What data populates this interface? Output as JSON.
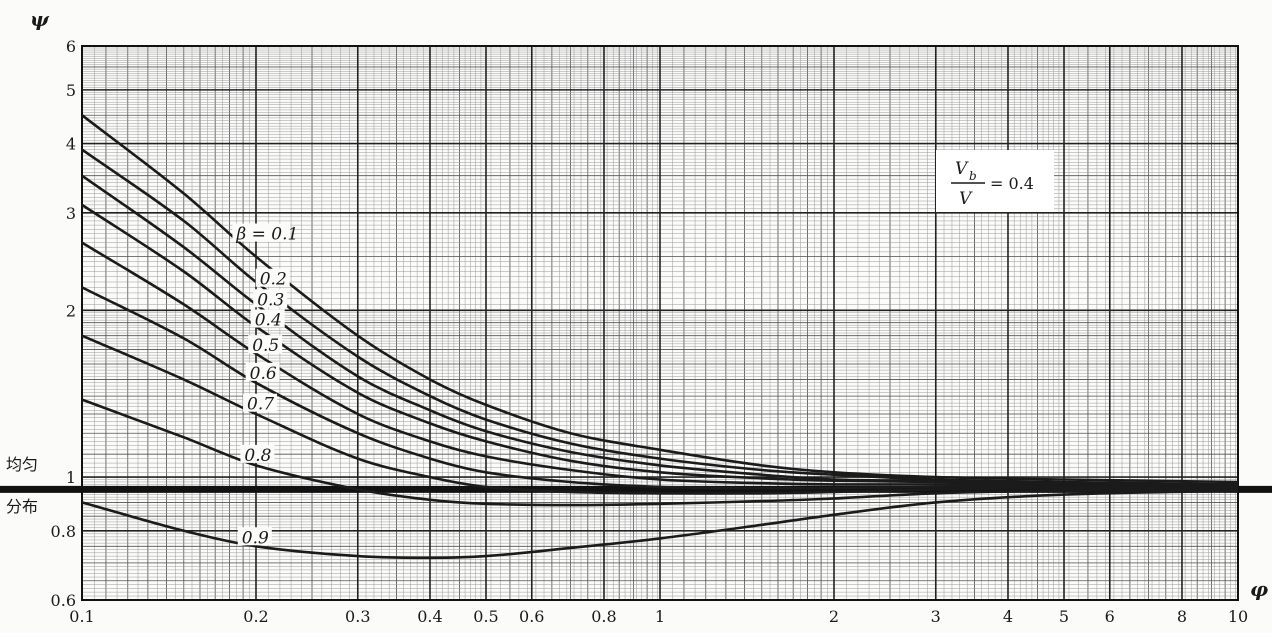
{
  "chart_data": {
    "type": "line",
    "ylabel": "ψ",
    "xlabel": "φ",
    "x_scale": "log",
    "y_scale": "log",
    "xlim": [
      0.1,
      10
    ],
    "ylim": [
      0.6,
      6
    ],
    "grid": true,
    "x_ticks": [
      0.1,
      0.2,
      0.3,
      0.4,
      0.5,
      0.6,
      0.8,
      1,
      2,
      3,
      4,
      5,
      6,
      8,
      10
    ],
    "x_tick_labels": [
      "0.1",
      "0.2",
      "0.3",
      "0.4",
      "0.5",
      "0.6",
      "0.8",
      "1",
      "2",
      "3",
      "4",
      "5",
      "6",
      "8",
      "10"
    ],
    "y_ticks": [
      0.6,
      0.8,
      1,
      2,
      3,
      4,
      5,
      6
    ],
    "y_tick_labels": [
      "0.6",
      "0.8",
      "1",
      "2",
      "3",
      "4",
      "5",
      "6"
    ],
    "annotation": {
      "lhs_numerator": "V",
      "lhs_numerator_sub": "b",
      "lhs_denominator": "V",
      "rhs": "= 0.4"
    },
    "reference_line": {
      "y": 0.95,
      "label_upper": "均匀",
      "label_lower": "分布"
    },
    "x": [
      0.1,
      0.15,
      0.2,
      0.3,
      0.4,
      0.5,
      0.7,
      1,
      1.5,
      2,
      3,
      5,
      10
    ],
    "series": [
      {
        "label": "β = 0.1",
        "values": [
          4.5,
          3.25,
          2.5,
          1.8,
          1.5,
          1.35,
          1.2,
          1.12,
          1.05,
          1.02,
          1.0,
          0.99,
          0.98
        ]
      },
      {
        "label": "0.2",
        "values": [
          3.9,
          2.9,
          2.25,
          1.65,
          1.4,
          1.27,
          1.15,
          1.08,
          1.03,
          1.01,
          0.99,
          0.98,
          0.97
        ]
      },
      {
        "label": "0.3",
        "values": [
          3.5,
          2.6,
          2.05,
          1.52,
          1.32,
          1.21,
          1.11,
          1.05,
          1.01,
          0.99,
          0.985,
          0.975,
          0.97
        ]
      },
      {
        "label": "0.4",
        "values": [
          3.1,
          2.35,
          1.87,
          1.42,
          1.25,
          1.16,
          1.07,
          1.02,
          0.995,
          0.985,
          0.98,
          0.97,
          0.97
        ]
      },
      {
        "label": "0.5",
        "values": [
          2.65,
          2.05,
          1.67,
          1.3,
          1.16,
          1.09,
          1.03,
          0.99,
          0.975,
          0.97,
          0.97,
          0.965,
          0.965
        ]
      },
      {
        "label": "0.6",
        "values": [
          2.2,
          1.78,
          1.48,
          1.2,
          1.08,
          1.02,
          0.98,
          0.96,
          0.955,
          0.955,
          0.96,
          0.96,
          0.96
        ]
      },
      {
        "label": "0.7",
        "values": [
          1.8,
          1.5,
          1.3,
          1.08,
          1.0,
          0.96,
          0.94,
          0.935,
          0.935,
          0.94,
          0.95,
          0.955,
          0.955
        ]
      },
      {
        "label": "0.8",
        "values": [
          1.38,
          1.18,
          1.05,
          0.95,
          0.91,
          0.895,
          0.89,
          0.895,
          0.905,
          0.915,
          0.935,
          0.945,
          0.95
        ]
      },
      {
        "label": "0.9",
        "values": [
          0.9,
          0.8,
          0.75,
          0.72,
          0.715,
          0.72,
          0.745,
          0.775,
          0.82,
          0.855,
          0.9,
          0.93,
          0.945
        ]
      }
    ]
  }
}
